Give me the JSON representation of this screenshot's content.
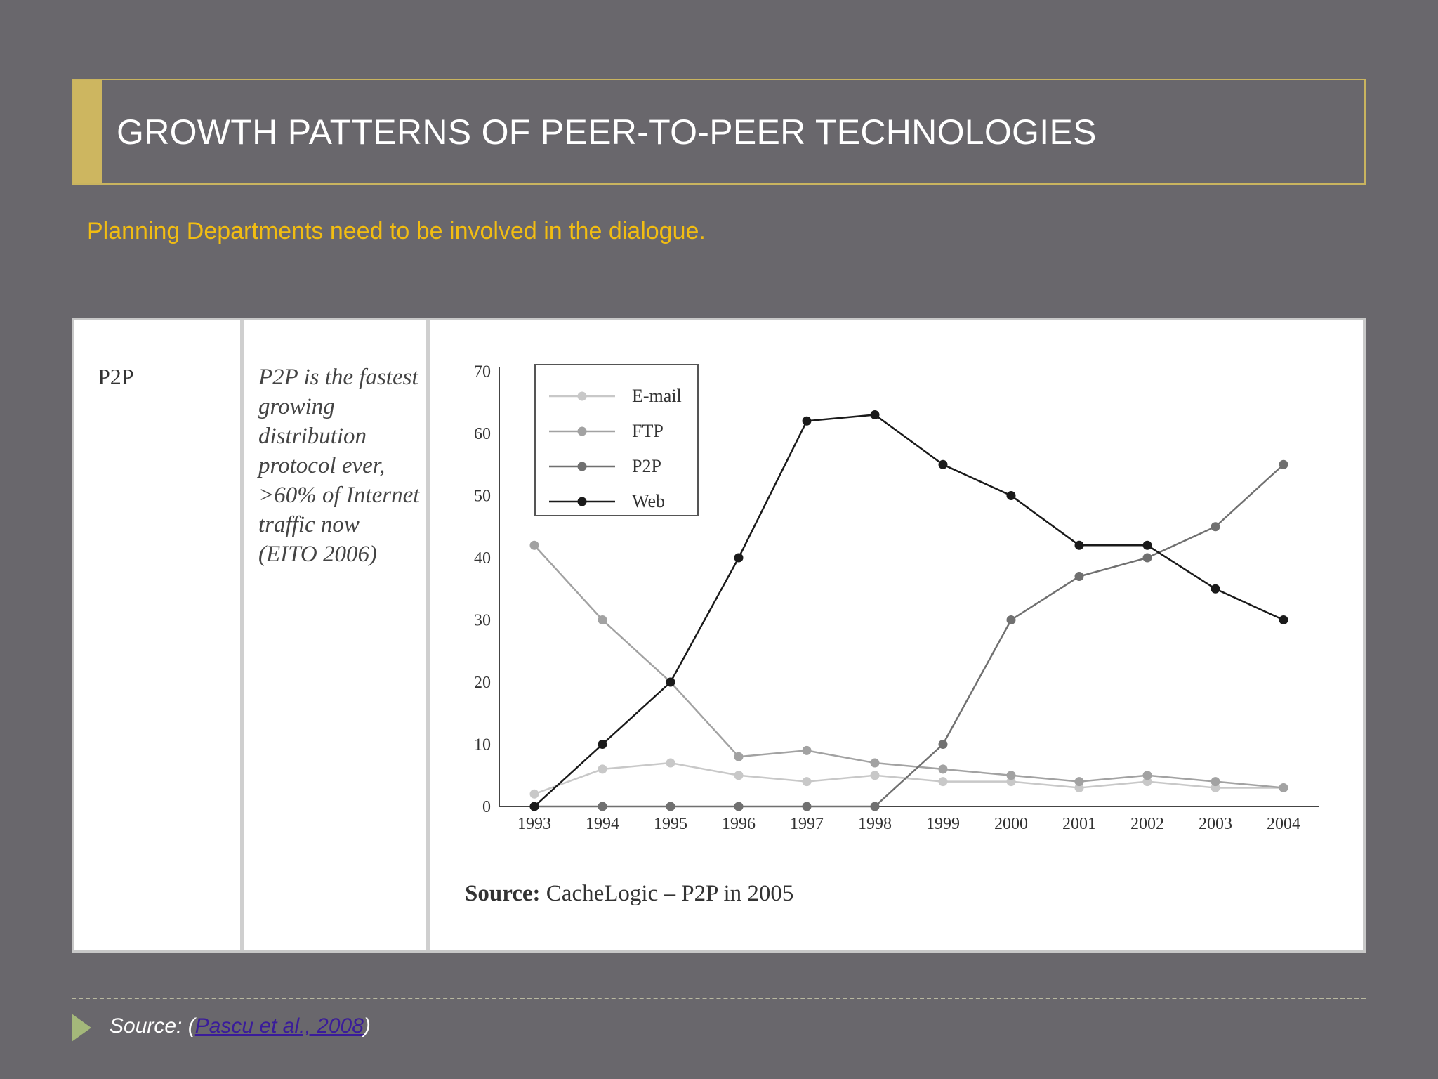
{
  "slide": {
    "title": "GROWTH PATTERNS OF PEER-TO-PEER TECHNOLOGIES",
    "subtitle": "Planning Departments need to be involved in the dialogue.",
    "accent_color": "#cdb660",
    "subtitle_color": "#f2bd12"
  },
  "table": {
    "col1": "P2P",
    "col2": "P2P is the fastest growing distribution protocol ever, >60% of Internet traffic now (EITO 2006)"
  },
  "chart_data": {
    "type": "line",
    "x": [
      "1993",
      "1994",
      "1995",
      "1996",
      "1997",
      "1998",
      "1999",
      "2000",
      "2001",
      "2002",
      "2003",
      "2004"
    ],
    "yticks": [
      0,
      10,
      20,
      30,
      40,
      50,
      60,
      70
    ],
    "ylim": [
      0,
      70
    ],
    "grid": false,
    "legend_position": "top-left",
    "series": [
      {
        "name": "E-mail",
        "color": "#c8c8c8",
        "values": [
          2,
          6,
          7,
          5,
          4,
          5,
          4,
          4,
          3,
          4,
          3,
          3
        ]
      },
      {
        "name": "FTP",
        "color": "#a2a2a2",
        "values": [
          42,
          30,
          20,
          8,
          9,
          7,
          6,
          5,
          4,
          5,
          4,
          3
        ]
      },
      {
        "name": "P2P",
        "color": "#707070",
        "values": [
          0,
          0,
          0,
          0,
          0,
          0,
          10,
          30,
          37,
          40,
          45,
          55
        ]
      },
      {
        "name": "Web",
        "color": "#1a1a1a",
        "values": [
          0,
          10,
          20,
          40,
          62,
          63,
          55,
          50,
          42,
          42,
          35,
          30
        ]
      }
    ],
    "source_bold": "Source:",
    "source_text": " CacheLogic – P2P in 2005"
  },
  "footer": {
    "prefix": "Source: (",
    "link": "Pascu et al., 2008",
    "suffix": ")"
  }
}
